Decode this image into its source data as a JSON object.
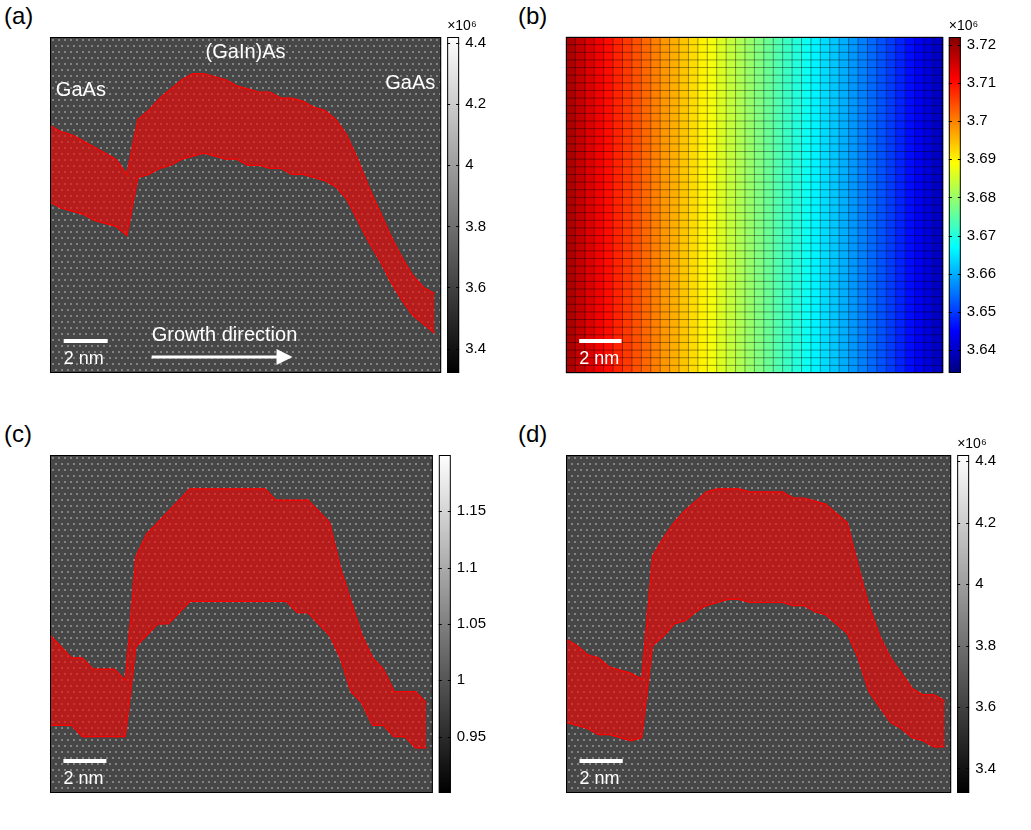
{
  "chart_data": [
    {
      "panel": "(a)",
      "type": "line",
      "labels": [
        "GaAs",
        "(GaIn)As",
        "GaAs"
      ],
      "arrow_label": "Growth direction",
      "scale_bar": {
        "label": "2 nm",
        "length": 2
      },
      "x": [
        0,
        0.5,
        1,
        1.5,
        2,
        2.5,
        3,
        3.5,
        4,
        4.5,
        5,
        5.5,
        6,
        6.5,
        7,
        7.5,
        8,
        8.5,
        9,
        9.5,
        10,
        10.5,
        11,
        11.5,
        12,
        12.5,
        13,
        13.5,
        14,
        14.5,
        15,
        15.5,
        16,
        16.5,
        17,
        17.5
      ],
      "series": [
        {
          "color": "#ff0000",
          "values": [
            4.13,
            4.11,
            4.1,
            4.08,
            4.06,
            4.04,
            4.02,
            3.97,
            4.15,
            4.18,
            4.22,
            4.25,
            4.28,
            4.3,
            4.3,
            4.29,
            4.28,
            4.26,
            4.25,
            4.24,
            4.24,
            4.22,
            4.22,
            4.21,
            4.19,
            4.18,
            4.15,
            4.1,
            4.02,
            3.93,
            3.85,
            3.77,
            3.7,
            3.64,
            3.6,
            3.58
          ]
        },
        {
          "color": "#ff0000",
          "values": [
            3.88,
            3.86,
            3.85,
            3.84,
            3.82,
            3.81,
            3.8,
            3.77,
            3.96,
            3.97,
            3.99,
            4.0,
            4.02,
            4.03,
            4.04,
            4.03,
            4.02,
            4.02,
            4.0,
            4.0,
            3.99,
            3.99,
            3.97,
            3.97,
            3.96,
            3.95,
            3.93,
            3.89,
            3.82,
            3.75,
            3.69,
            3.62,
            3.56,
            3.51,
            3.48,
            3.45
          ]
        }
      ],
      "xlim": [
        0,
        17.8
      ],
      "ylim": [
        3.32,
        4.42
      ],
      "yticks": [
        3.4,
        3.6,
        3.8,
        4,
        4.2,
        4.4
      ],
      "multiplier": "×10⁶",
      "tick_labels": "y",
      "grid": false
    },
    {
      "panel": "(b)",
      "type": "heatmap",
      "scale_bar": {
        "label": "2 nm",
        "length": 2
      },
      "cells": {
        "rows": 44,
        "column_values": [
          3.718,
          3.716,
          3.714,
          3.712,
          3.71,
          3.708,
          3.706,
          3.704,
          3.702,
          3.7,
          3.698,
          3.696,
          3.694,
          3.692,
          3.69,
          3.688,
          3.686,
          3.684,
          3.682,
          3.68,
          3.678,
          3.676,
          3.674,
          3.672,
          3.67,
          3.668,
          3.666,
          3.664,
          3.662,
          3.66,
          3.658,
          3.656,
          3.654,
          3.652,
          3.65,
          3.648,
          3.646,
          3.644,
          3.642,
          3.64
        ]
      },
      "xlim": [
        0,
        17.8
      ],
      "ylim": [
        3.634,
        3.722
      ],
      "yticks": [
        3.64,
        3.65,
        3.66,
        3.67,
        3.68,
        3.69,
        3.7,
        3.71,
        3.72
      ],
      "multiplier": "×10⁶",
      "tick_labels": "y",
      "grid": true
    },
    {
      "panel": "(c)",
      "type": "line",
      "scale_bar": {
        "label": "2 nm",
        "length": 2
      },
      "x": [
        0,
        0.5,
        1,
        1.5,
        2,
        2.5,
        3,
        3.5,
        4,
        4.5,
        5,
        5.5,
        6,
        6.5,
        7,
        7.5,
        8,
        8.5,
        9,
        9.5,
        10,
        10.5,
        11,
        11.5,
        12,
        12.5,
        13,
        13.5,
        14,
        14.5,
        15,
        15.5,
        16,
        16.5,
        17,
        17.5
      ],
      "series": [
        {
          "color": "#ff0000",
          "values": [
            1.04,
            1.03,
            1.02,
            1.02,
            1.01,
            1.01,
            1.01,
            1.0,
            1.11,
            1.13,
            1.14,
            1.15,
            1.16,
            1.17,
            1.17,
            1.17,
            1.17,
            1.17,
            1.17,
            1.17,
            1.17,
            1.16,
            1.16,
            1.16,
            1.16,
            1.15,
            1.14,
            1.1,
            1.07,
            1.04,
            1.02,
            1.01,
            0.99,
            0.99,
            0.99,
            0.98
          ]
        },
        {
          "color": "#ff0000",
          "values": [
            0.96,
            0.96,
            0.96,
            0.95,
            0.95,
            0.95,
            0.95,
            0.95,
            1.03,
            1.04,
            1.05,
            1.05,
            1.06,
            1.07,
            1.07,
            1.07,
            1.07,
            1.07,
            1.07,
            1.07,
            1.07,
            1.07,
            1.07,
            1.06,
            1.06,
            1.05,
            1.04,
            1.02,
            0.99,
            0.98,
            0.96,
            0.96,
            0.95,
            0.95,
            0.94,
            0.94
          ]
        }
      ],
      "xlim": [
        0,
        17.8
      ],
      "ylim": [
        0.9,
        1.2
      ],
      "yticks": [
        0.95,
        1,
        1.05,
        1.1,
        1.15
      ],
      "tick_labels": "y",
      "grid": false
    },
    {
      "panel": "(d)",
      "type": "line",
      "scale_bar": {
        "label": "2 nm",
        "length": 2
      },
      "x": [
        0,
        0.5,
        1,
        1.5,
        2,
        2.5,
        3,
        3.5,
        4,
        4.5,
        5,
        5.5,
        6,
        6.5,
        7,
        7.5,
        8,
        8.5,
        9,
        9.5,
        10,
        10.5,
        11,
        11.5,
        12,
        12.5,
        13,
        13.5,
        14,
        14.5,
        15,
        15.5,
        16,
        16.5,
        17,
        17.5
      ],
      "series": [
        {
          "color": "#ff0000",
          "values": [
            3.82,
            3.8,
            3.77,
            3.76,
            3.73,
            3.72,
            3.71,
            3.69,
            4.09,
            4.15,
            4.2,
            4.24,
            4.27,
            4.3,
            4.31,
            4.31,
            4.31,
            4.3,
            4.3,
            4.3,
            4.3,
            4.28,
            4.28,
            4.27,
            4.26,
            4.23,
            4.2,
            4.06,
            3.93,
            3.83,
            3.76,
            3.71,
            3.66,
            3.64,
            3.64,
            3.62
          ]
        },
        {
          "color": "#ff0000",
          "values": [
            3.55,
            3.54,
            3.53,
            3.51,
            3.51,
            3.5,
            3.49,
            3.5,
            3.8,
            3.83,
            3.87,
            3.88,
            3.91,
            3.93,
            3.94,
            3.95,
            3.95,
            3.94,
            3.94,
            3.94,
            3.94,
            3.93,
            3.93,
            3.91,
            3.9,
            3.87,
            3.84,
            3.76,
            3.65,
            3.6,
            3.55,
            3.53,
            3.5,
            3.49,
            3.47,
            3.47
          ]
        }
      ],
      "xlim": [
        0,
        17.8
      ],
      "ylim": [
        3.32,
        4.42
      ],
      "yticks": [
        3.4,
        3.6,
        3.8,
        4,
        4.2,
        4.4
      ],
      "multiplier": "×10⁶",
      "tick_labels": "y",
      "grid": false
    }
  ]
}
